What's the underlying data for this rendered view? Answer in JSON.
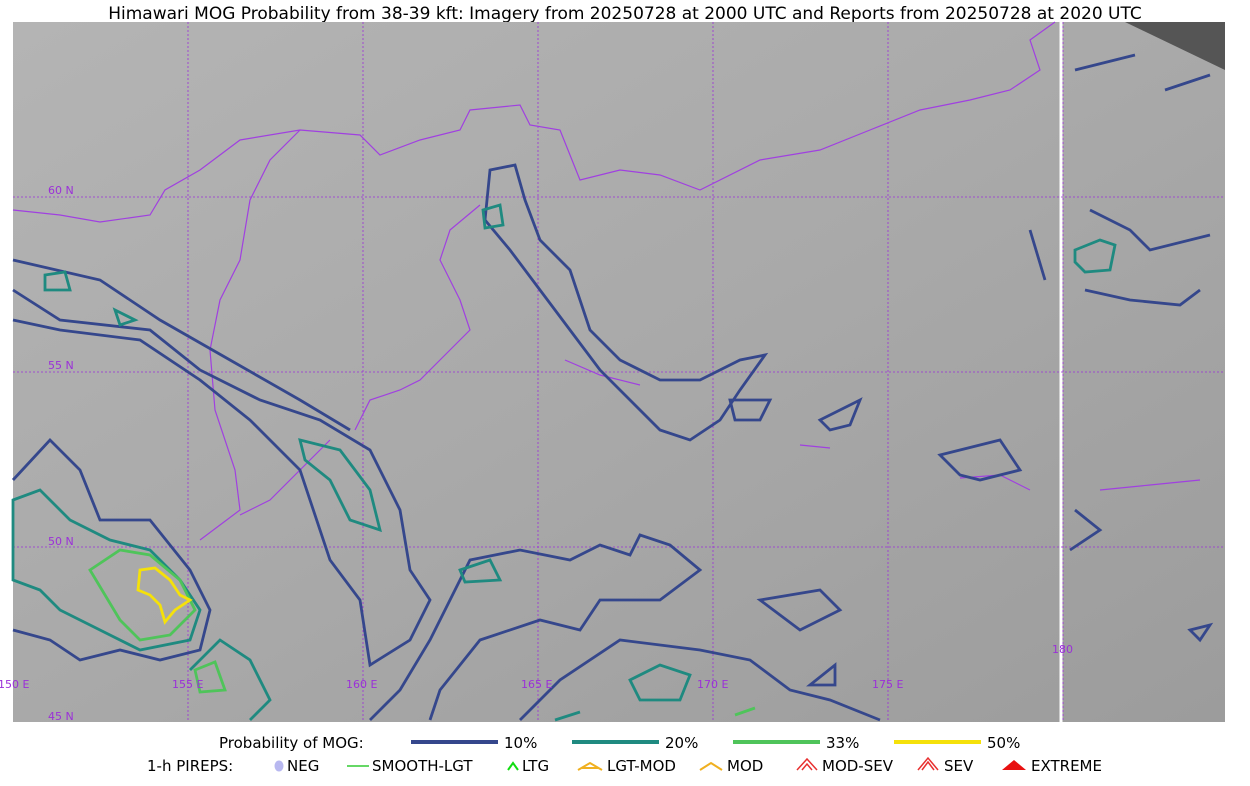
{
  "header": {
    "title": "Himawari MOG Probability from 38-39 kft: Imagery from 20250728 at 2000 UTC and Reports from 20250728 at 2020 UTC"
  },
  "map": {
    "lat_labels": [
      "60 N",
      "55 N",
      "50 N",
      "45 N"
    ],
    "lon_labels": [
      "150 E",
      "155 E",
      "160 E",
      "165 E",
      "170 E",
      "175 E",
      "180"
    ]
  },
  "legend": {
    "probability": {
      "label": "Probability of MOG:",
      "items": [
        {
          "label": "10%",
          "color": "#35478c"
        },
        {
          "label": "20%",
          "color": "#1f8a80"
        },
        {
          "label": "33%",
          "color": "#4fc45a"
        },
        {
          "label": "50%",
          "color": "#f5e10a"
        }
      ]
    },
    "pireps": {
      "label": "1-h PIREPS:",
      "items": [
        {
          "label": "NEG",
          "color": "#b8b8f0"
        },
        {
          "label": "SMOOTH-LGT",
          "color": "#33cc33"
        },
        {
          "label": "LTG",
          "color": "#11dd11"
        },
        {
          "label": "LGT-MOD",
          "color": "#f0b020"
        },
        {
          "label": "MOD",
          "color": "#f0b020"
        },
        {
          "label": "MOD-SEV",
          "color": "#e83030"
        },
        {
          "label": "SEV",
          "color": "#e83030"
        },
        {
          "label": "EXTREME",
          "color": "#e81010"
        }
      ]
    }
  }
}
